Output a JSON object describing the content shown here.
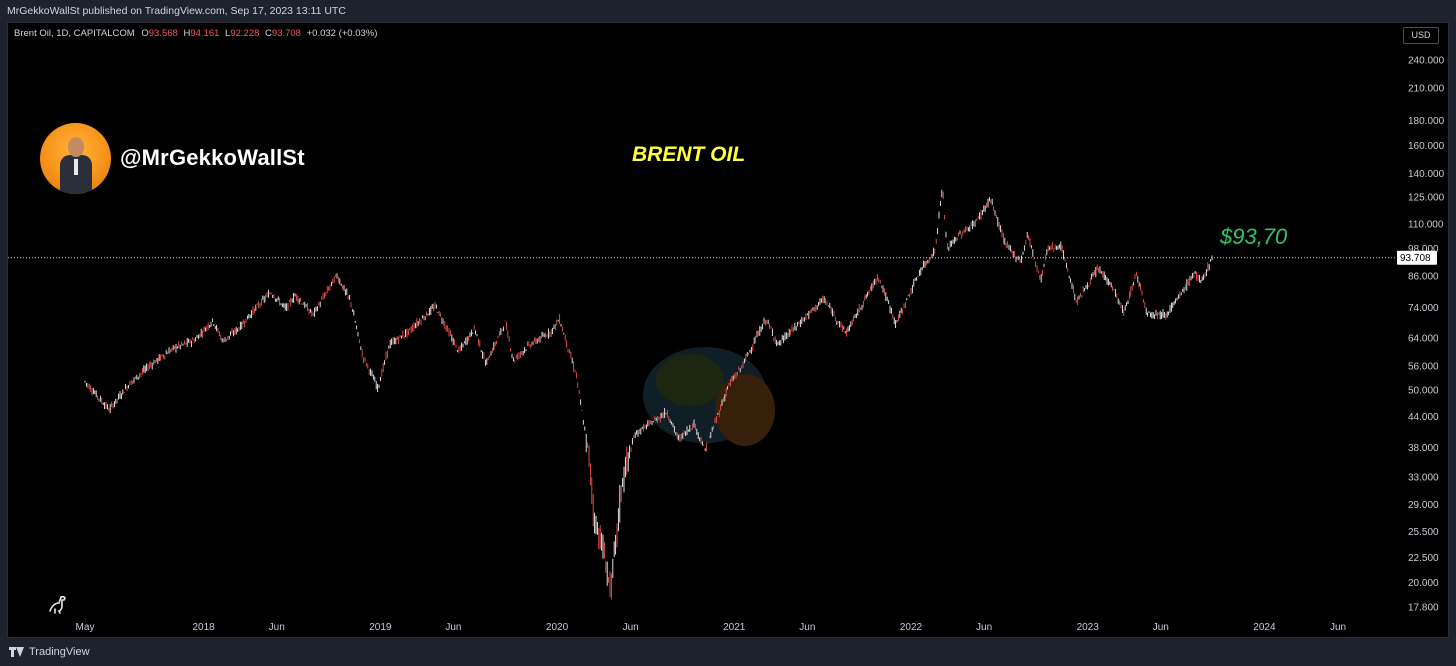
{
  "header": {
    "published": "MrGekkoWallSt published on TradingView.com, Sep 17, 2023 13:11 UTC"
  },
  "legend": {
    "symbol": "Brent Oil, 1D, CAPITALCOM",
    "o_label": "O",
    "o_value": "93.568",
    "h_label": "H",
    "h_value": "94.161",
    "l_label": "L",
    "l_value": "92.228",
    "c_label": "C",
    "c_value": "93.708",
    "change": "+0.032 (+0.03%)"
  },
  "currency": "USD",
  "author": {
    "handle": "@MrGekkoWallSt"
  },
  "annotation": {
    "price_text": "$93,70"
  },
  "footer": {
    "brand": "TradingView"
  },
  "colors": {
    "candle": "#ef5350",
    "last_price_line": "#c8c8c8",
    "title": "#ffff3a",
    "annotation": "#2ec46a"
  },
  "chart_data": {
    "type": "line",
    "title": "BRENT OIL",
    "scale": "log",
    "y_ticks": [
      "240.000",
      "210.000",
      "180.000",
      "160.000",
      "140.000",
      "125.000",
      "110.000",
      "98.000",
      "86.000",
      "74.000",
      "64.000",
      "56.000",
      "50.000",
      "44.000",
      "38.000",
      "33.000",
      "29.000",
      "25.500",
      "22.500",
      "20.000",
      "17.800"
    ],
    "x_ticks": [
      "May",
      "2018",
      "Jun",
      "2019",
      "Jun",
      "2020",
      "Jun",
      "2021",
      "Jun",
      "2022",
      "Jun",
      "2023",
      "Jun",
      "2024",
      "Jun"
    ],
    "last_price": 93.708,
    "last_price_label": "93.708",
    "series": [
      {
        "values": [
          [
            "2017-05-01",
            52.0
          ],
          [
            "2017-06-20",
            45.5
          ],
          [
            "2017-08-01",
            51.5
          ],
          [
            "2017-09-15",
            56.5
          ],
          [
            "2017-11-01",
            61.0
          ],
          [
            "2017-12-15",
            63.5
          ],
          [
            "2018-01-20",
            69.5
          ],
          [
            "2018-02-10",
            63.0
          ],
          [
            "2018-03-15",
            67.0
          ],
          [
            "2018-04-20",
            74.0
          ],
          [
            "2018-05-20",
            79.5
          ],
          [
            "2018-06-20",
            73.5
          ],
          [
            "2018-07-10",
            78.5
          ],
          [
            "2018-08-15",
            71.5
          ],
          [
            "2018-10-03",
            86.2
          ],
          [
            "2018-11-01",
            76.0
          ],
          [
            "2018-11-25",
            59.0
          ],
          [
            "2018-12-27",
            50.5
          ],
          [
            "2019-01-20",
            62.0
          ],
          [
            "2019-03-01",
            66.0
          ],
          [
            "2019-04-25",
            74.5
          ],
          [
            "2019-06-12",
            60.0
          ],
          [
            "2019-07-15",
            67.0
          ],
          [
            "2019-08-07",
            56.5
          ],
          [
            "2019-09-16",
            69.0
          ],
          [
            "2019-10-03",
            57.5
          ],
          [
            "2019-11-01",
            61.5
          ],
          [
            "2019-12-20",
            66.0
          ],
          [
            "2020-01-06",
            70.0
          ],
          [
            "2020-02-10",
            53.5
          ],
          [
            "2020-03-09",
            35.0
          ],
          [
            "2020-03-18",
            27.0
          ],
          [
            "2020-04-01",
            24.5
          ],
          [
            "2020-04-21",
            19.3
          ],
          [
            "2020-05-15",
            32.5
          ],
          [
            "2020-06-10",
            40.5
          ],
          [
            "2020-08-15",
            45.0
          ],
          [
            "2020-09-08",
            39.5
          ],
          [
            "2020-10-10",
            42.5
          ],
          [
            "2020-11-02",
            37.5
          ],
          [
            "2020-12-20",
            51.0
          ],
          [
            "2021-01-15",
            55.5
          ],
          [
            "2021-03-08",
            70.0
          ],
          [
            "2021-04-01",
            62.0
          ],
          [
            "2021-05-15",
            68.5
          ],
          [
            "2021-07-05",
            77.0
          ],
          [
            "2021-08-20",
            65.5
          ],
          [
            "2021-10-25",
            86.0
          ],
          [
            "2021-12-01",
            68.5
          ],
          [
            "2022-01-20",
            88.0
          ],
          [
            "2022-02-20",
            97.0
          ],
          [
            "2022-03-07",
            132.0
          ],
          [
            "2022-03-16",
            98.0
          ],
          [
            "2022-04-10",
            104.0
          ],
          [
            "2022-05-15",
            111.0
          ],
          [
            "2022-06-14",
            124.0
          ],
          [
            "2022-07-15",
            100.0
          ],
          [
            "2022-08-16",
            92.0
          ],
          [
            "2022-08-30",
            105.0
          ],
          [
            "2022-09-26",
            84.0
          ],
          [
            "2022-10-10",
            98.0
          ],
          [
            "2022-11-07",
            99.0
          ],
          [
            "2022-12-09",
            76.0
          ],
          [
            "2023-01-23",
            89.0
          ],
          [
            "2023-02-20",
            82.0
          ],
          [
            "2023-03-17",
            72.0
          ],
          [
            "2023-04-12",
            87.0
          ],
          [
            "2023-05-04",
            72.0
          ],
          [
            "2023-06-12",
            71.5
          ],
          [
            "2023-07-10",
            78.0
          ],
          [
            "2023-08-10",
            87.5
          ],
          [
            "2023-08-23",
            83.0
          ],
          [
            "2023-09-15",
            93.7
          ]
        ]
      }
    ]
  }
}
